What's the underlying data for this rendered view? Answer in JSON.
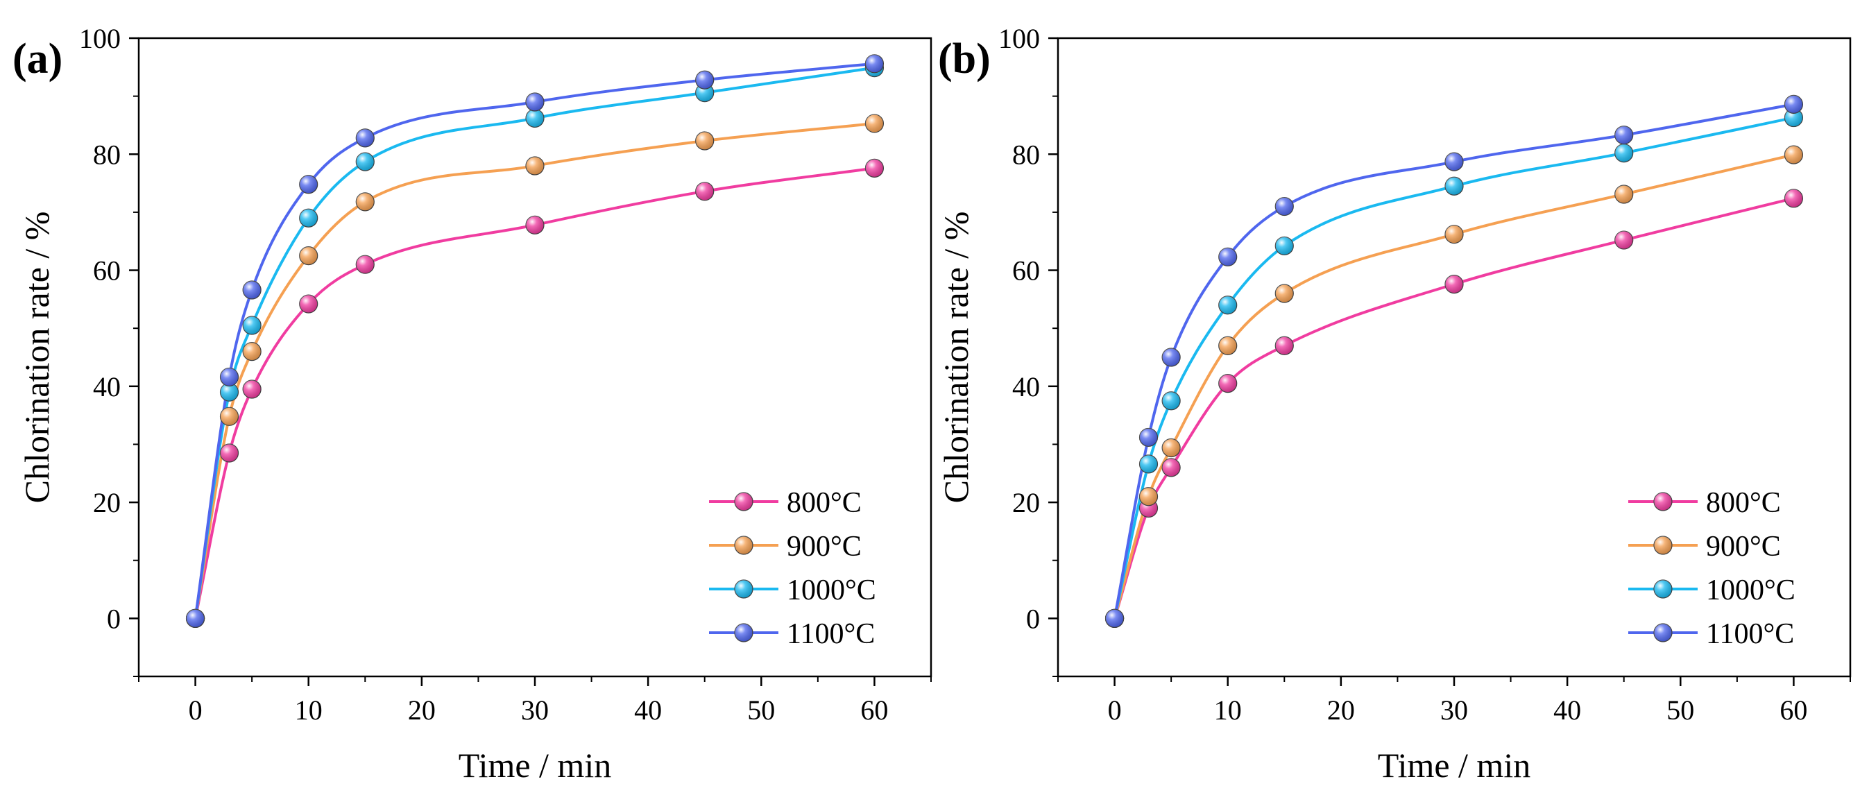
{
  "chart_data": [
    {
      "type": "line",
      "panel_label": "(a)",
      "xlabel": "Time / min",
      "ylabel": "Chlorination rate / %",
      "xlim": [
        -5,
        65
      ],
      "ylim": [
        -10,
        100
      ],
      "xticks": [
        0,
        10,
        20,
        30,
        40,
        50,
        60
      ],
      "yticks": [
        0,
        20,
        40,
        60,
        80,
        100
      ],
      "grid": false,
      "legend_position": "bottom-right",
      "x": [
        0,
        3,
        5,
        10,
        15,
        30,
        45,
        60
      ],
      "series": [
        {
          "name": "800°C",
          "color": "#f03ca0",
          "values": [
            0,
            28.5,
            39.5,
            54.2,
            61.0,
            67.8,
            73.6,
            77.6
          ]
        },
        {
          "name": "900°C",
          "color": "#f5a052",
          "values": [
            0,
            34.8,
            46.0,
            62.5,
            71.8,
            78.0,
            82.3,
            85.3
          ]
        },
        {
          "name": "1000°C",
          "color": "#1ab9f0",
          "values": [
            0,
            39.0,
            50.5,
            69.0,
            78.7,
            86.2,
            90.6,
            94.9
          ]
        },
        {
          "name": "1100°C",
          "color": "#4f66ee",
          "values": [
            0,
            41.6,
            56.6,
            74.8,
            82.8,
            89.0,
            92.8,
            95.6
          ]
        }
      ]
    },
    {
      "type": "line",
      "panel_label": "(b)",
      "xlabel": "Time / min",
      "ylabel": "Chlorination rate / %",
      "xlim": [
        -5,
        65
      ],
      "ylim": [
        -10,
        100
      ],
      "xticks": [
        0,
        10,
        20,
        30,
        40,
        50,
        60
      ],
      "yticks": [
        0,
        20,
        40,
        60,
        80,
        100
      ],
      "grid": false,
      "legend_position": "bottom-right",
      "x": [
        0,
        3,
        5,
        10,
        15,
        30,
        45,
        60
      ],
      "series": [
        {
          "name": "800°C",
          "color": "#f03ca0",
          "values": [
            0,
            19.0,
            26.0,
            40.5,
            47.0,
            57.6,
            65.2,
            72.4
          ]
        },
        {
          "name": "900°C",
          "color": "#f5a052",
          "values": [
            0,
            21.0,
            29.4,
            47.0,
            56.0,
            66.2,
            73.1,
            79.9
          ]
        },
        {
          "name": "1000°C",
          "color": "#1ab9f0",
          "values": [
            0,
            26.6,
            37.5,
            54.0,
            64.2,
            74.5,
            80.2,
            86.3
          ]
        },
        {
          "name": "1100°C",
          "color": "#4f66ee",
          "values": [
            0,
            31.2,
            45.0,
            62.3,
            71.0,
            78.7,
            83.3,
            88.6
          ]
        }
      ]
    }
  ]
}
